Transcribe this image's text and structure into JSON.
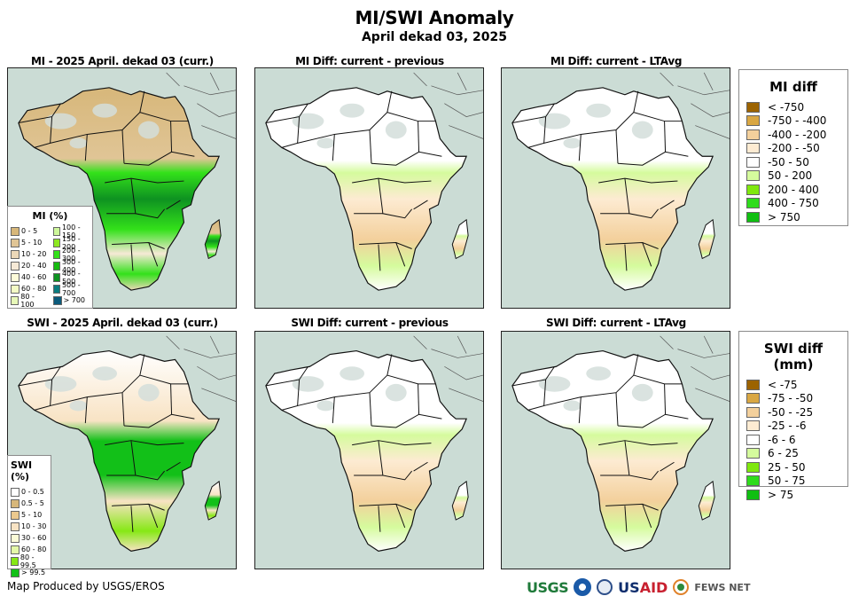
{
  "header": {
    "title": "MI/SWI Anomaly",
    "subtitle": "April dekad 03, 2025"
  },
  "panels": [
    {
      "title": "MI - 2025 April. dekad 03 (curr.)",
      "kind": "mi_abs"
    },
    {
      "title": "MI Diff: current - previous",
      "kind": "mi_diff_prev"
    },
    {
      "title": "MI Diff: current - LTAvg",
      "kind": "mi_diff_lta"
    },
    {
      "title": "SWI - 2025 April. dekad 03 (curr.)",
      "kind": "swi_abs"
    },
    {
      "title": "SWI Diff: current - previous",
      "kind": "swi_diff_prev"
    },
    {
      "title": "SWI Diff: current - LTAvg",
      "kind": "swi_diff_lta"
    }
  ],
  "legends": {
    "mi_pct": {
      "title": "MI (%)",
      "items": [
        {
          "label": "0 - 5",
          "color": "#d7b77a"
        },
        {
          "label": "5 - 10",
          "color": "#e0c596"
        },
        {
          "label": "10 - 20",
          "color": "#ecd8b8"
        },
        {
          "label": "20 - 40",
          "color": "#f6e9d6"
        },
        {
          "label": "40 - 60",
          "color": "#fdfbd9"
        },
        {
          "label": "60 - 80",
          "color": "#f3fbc4"
        },
        {
          "label": "80 - 100",
          "color": "#e7f8b8"
        },
        {
          "label": "100 - 150",
          "color": "#cdf79a"
        },
        {
          "label": "150 - 200",
          "color": "#8de820"
        },
        {
          "label": "200 - 300",
          "color": "#33e11a"
        },
        {
          "label": "300 - 400",
          "color": "#16bb10"
        },
        {
          "label": "400 - 500",
          "color": "#0e9221"
        },
        {
          "label": "500 - 700",
          "color": "#0b7d80"
        },
        {
          "label": "> 700",
          "color": "#0b5a7b"
        }
      ]
    },
    "swi_pct": {
      "title": "SWI (%)",
      "items": [
        {
          "label": "0 - 0.5",
          "color": "#ffffff"
        },
        {
          "label": "0.5 - 5",
          "color": "#d7b77a"
        },
        {
          "label": "5 - 10",
          "color": "#ecc98e"
        },
        {
          "label": "10 - 30",
          "color": "#f8e3c4"
        },
        {
          "label": "30 - 60",
          "color": "#fbfbd7"
        },
        {
          "label": "60 - 80",
          "color": "#e4f8a8"
        },
        {
          "label": "80 - 99.5",
          "color": "#86e815"
        },
        {
          "label": "> 99.5",
          "color": "#12c018"
        }
      ]
    },
    "mi_diff": {
      "title": "MI diff",
      "items": [
        {
          "label": "< -750",
          "color": "#9c6300"
        },
        {
          "label": "-750 - -400",
          "color": "#d9a743"
        },
        {
          "label": "-400 - -200",
          "color": "#f3d09c"
        },
        {
          "label": "-200 - -50",
          "color": "#fdebd2"
        },
        {
          "label": "-50 - 50",
          "color": "#ffffff"
        },
        {
          "label": "50 - 200",
          "color": "#d5fb9d"
        },
        {
          "label": "200 - 400",
          "color": "#7fe80e"
        },
        {
          "label": "400 - 750",
          "color": "#2fdc1c"
        },
        {
          "label": "> 750",
          "color": "#10bf12"
        }
      ]
    },
    "swi_diff": {
      "title": "SWI diff (mm)",
      "items": [
        {
          "label": "< -75",
          "color": "#9c6300"
        },
        {
          "label": "-75 - -50",
          "color": "#d9a743"
        },
        {
          "label": "-50 - -25",
          "color": "#f3d09c"
        },
        {
          "label": "-25 - -6",
          "color": "#fdebd2"
        },
        {
          "label": "-6 - 6",
          "color": "#ffffff"
        },
        {
          "label": "6 - 25",
          "color": "#d5fb9d"
        },
        {
          "label": "25 - 50",
          "color": "#7fe80e"
        },
        {
          "label": "50 - 75",
          "color": "#2fdc1c"
        },
        {
          "label": "> 75",
          "color": "#10bf12"
        }
      ]
    }
  },
  "colors": {
    "ocean": "#cbdcd5",
    "no_data_land": "#d3dedb"
  },
  "footer": {
    "credit": "Map Produced by USGS/EROS",
    "logos": [
      "USGS",
      "NOAA",
      "DHS",
      "USAID",
      "FEWS NET"
    ],
    "usgs": "USGS",
    "usaid_us": "US",
    "usaid_aid": "AID",
    "fews": "FEWS NET"
  }
}
